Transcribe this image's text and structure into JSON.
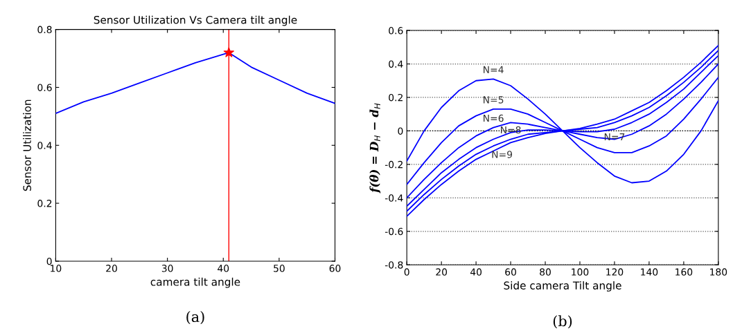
{
  "chart_data": [
    {
      "type": "line",
      "title": "Sensor Utilization Vs Camera tilt angle",
      "xlabel": "camera tilt angle",
      "ylabel": "Sensor Utilization",
      "x": [
        10,
        15,
        20,
        25,
        30,
        35,
        41,
        45,
        50,
        55,
        60
      ],
      "series": [
        {
          "color": "#0000ff",
          "values": [
            0.51,
            0.55,
            0.58,
            0.615,
            0.65,
            0.685,
            0.72,
            0.67,
            0.625,
            0.58,
            0.545
          ]
        },
        {
          "type": "scatter",
          "marker": "star",
          "color": "#ff0000",
          "x": [
            41
          ],
          "values": [
            0.72
          ]
        }
      ],
      "ref_lines": [
        {
          "axis": "x",
          "value": 41,
          "color": "#ff0000",
          "line_style": "solid"
        }
      ],
      "xlim": [
        10,
        60
      ],
      "xticks": [
        10,
        20,
        30,
        40,
        50,
        60
      ],
      "ylim": [
        0,
        0.8
      ],
      "yticks": [
        0,
        0.2,
        0.4,
        0.6,
        0.8
      ],
      "grid": false,
      "annotations": [
        "(a)"
      ]
    },
    {
      "type": "line",
      "xlabel": "Side camera Tilt angle",
      "ylabel": "f(θ) = D$_{H}$ − d$_{H}$",
      "x": [
        0,
        10,
        20,
        30,
        40,
        50,
        60,
        70,
        80,
        90,
        100,
        110,
        120,
        130,
        140,
        150,
        160,
        170,
        180
      ],
      "series": [
        {
          "color": "#0000ff",
          "values": [
            -0.18,
            0.0,
            0.14,
            0.24,
            0.3,
            0.31,
            0.27,
            0.19,
            0.1,
            0,
            -0.1,
            -0.19,
            -0.27,
            -0.31,
            -0.3,
            -0.24,
            -0.14,
            0.0,
            0.18
          ]
        },
        {
          "color": "#0000ff",
          "values": [
            -0.32,
            -0.19,
            -0.07,
            0.03,
            0.09,
            0.13,
            0.13,
            0.1,
            0.05,
            0,
            -0.05,
            -0.1,
            -0.13,
            -0.13,
            -0.09,
            -0.03,
            0.07,
            0.19,
            0.32
          ]
        },
        {
          "color": "#0000ff",
          "values": [
            -0.4,
            -0.29,
            -0.19,
            -0.1,
            -0.03,
            0.02,
            0.05,
            0.04,
            0.02,
            0,
            -0.02,
            -0.04,
            -0.05,
            -0.02,
            0.03,
            0.1,
            0.19,
            0.29,
            0.4
          ]
        },
        {
          "color": "#0000ff",
          "values": [
            -0.45,
            -0.35,
            -0.25,
            -0.17,
            -0.1,
            -0.05,
            -0.01,
            0.005,
            0.005,
            0,
            -0.005,
            -0.005,
            0.01,
            0.05,
            0.1,
            0.17,
            0.25,
            0.35,
            0.45
          ]
        },
        {
          "color": "#0000ff",
          "values": [
            -0.48,
            -0.38,
            -0.29,
            -0.21,
            -0.14,
            -0.09,
            -0.05,
            -0.02,
            -0.01,
            0,
            0.01,
            0.02,
            0.05,
            0.09,
            0.14,
            0.21,
            0.29,
            0.38,
            0.48
          ]
        },
        {
          "color": "#0000ff",
          "values": [
            -0.51,
            -0.41,
            -0.32,
            -0.24,
            -0.17,
            -0.12,
            -0.07,
            -0.04,
            -0.015,
            0,
            0.015,
            0.04,
            0.07,
            0.12,
            0.17,
            0.24,
            0.32,
            0.41,
            0.51
          ]
        }
      ],
      "ref_lines": [
        {
          "axis": "y",
          "value": 0,
          "color": "#000000",
          "line_style": "dotted"
        }
      ],
      "xlim": [
        0,
        180
      ],
      "xticks": [
        0,
        20,
        40,
        60,
        80,
        100,
        120,
        140,
        160,
        180
      ],
      "ylim": [
        -0.8,
        0.6
      ],
      "yticks": [
        -0.8,
        -0.6,
        -0.4,
        -0.2,
        0,
        0.2,
        0.4,
        0.6
      ],
      "grid": "y",
      "annotations": [
        {
          "text": "N=4",
          "x": 50,
          "y": 0.31
        },
        {
          "text": "N=5",
          "x": 50,
          "y": 0.13
        },
        {
          "text": "N=6",
          "x": 50,
          "y": 0.02
        },
        {
          "text": "N=7",
          "x": 120,
          "y": 0.01
        },
        {
          "text": "N=8",
          "x": 60,
          "y": -0.05
        },
        {
          "text": "N=9",
          "x": 55,
          "y": -0.095
        },
        "(b)"
      ]
    }
  ]
}
